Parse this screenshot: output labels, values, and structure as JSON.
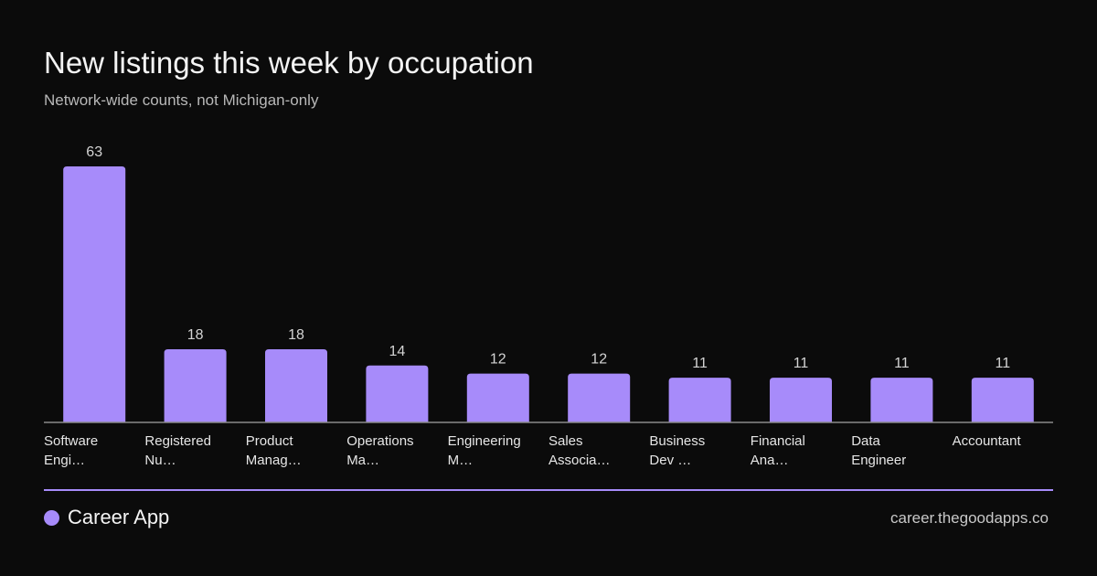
{
  "header": {
    "title": "New listings this week by occupation",
    "subtitle": "Network-wide  counts, not Michigan-only"
  },
  "colors": {
    "background": "#0b0b0b",
    "bar": "#a78bfa",
    "axis": "#8a8a8a",
    "accent": "#a78bfa"
  },
  "chart_data": {
    "type": "bar",
    "categories": [
      [
        "Software",
        "Engi…"
      ],
      [
        "Registered",
        "Nu…"
      ],
      [
        "Product",
        "Manag…"
      ],
      [
        "Operations",
        "Ma…"
      ],
      [
        "Engineering",
        "M…"
      ],
      [
        "Sales",
        "Associa…"
      ],
      [
        "Business",
        "Dev …"
      ],
      [
        "Financial",
        "Ana…"
      ],
      [
        "Data",
        "Engineer"
      ],
      [
        "Accountant"
      ]
    ],
    "values": [
      63,
      18,
      18,
      14,
      12,
      12,
      11,
      11,
      11,
      11
    ],
    "ylim": [
      0,
      63
    ],
    "grid": false,
    "data_labels": true
  },
  "footer": {
    "brand": "Career App",
    "url": "career.thegoodapps.co",
    "brand_icon": "dot-icon"
  }
}
